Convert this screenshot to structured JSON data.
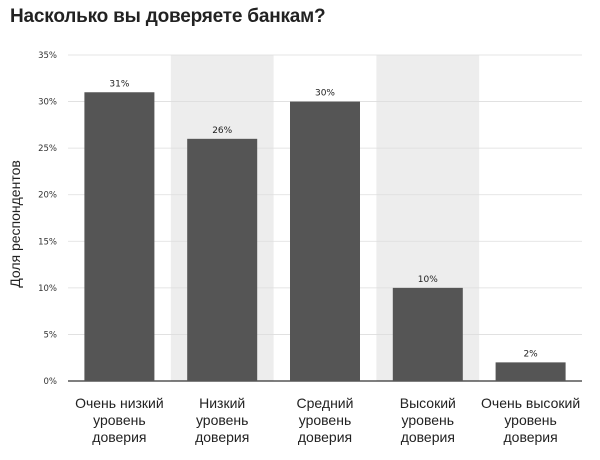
{
  "chart_data": {
    "type": "bar",
    "title": "Насколько вы доверяете банкам?",
    "xlabel": "",
    "ylabel": "Доля респондентов",
    "ylim": [
      0,
      35
    ],
    "yticks": [
      0,
      5,
      10,
      15,
      20,
      25,
      30,
      35
    ],
    "ytick_labels": [
      "0%",
      "5%",
      "10%",
      "15%",
      "20%",
      "25%",
      "30%",
      "35%"
    ],
    "categories": [
      [
        "Очень низкий",
        "уровень",
        "доверия"
      ],
      [
        "Низкий",
        "уровень",
        "доверия"
      ],
      [
        "Средний",
        "уровень",
        "доверия"
      ],
      [
        "Высокий",
        "уровень",
        "доверия"
      ],
      [
        "Очень высокий",
        "уровень",
        "доверия"
      ]
    ],
    "values": [
      31,
      26,
      30,
      10,
      2
    ],
    "value_labels": [
      "31%",
      "26%",
      "30%",
      "10%",
      "2%"
    ],
    "grid": true,
    "colors": {
      "bar": "#555555",
      "band": "#ededed",
      "grid": "#dddddd",
      "axis": "#333333"
    }
  }
}
